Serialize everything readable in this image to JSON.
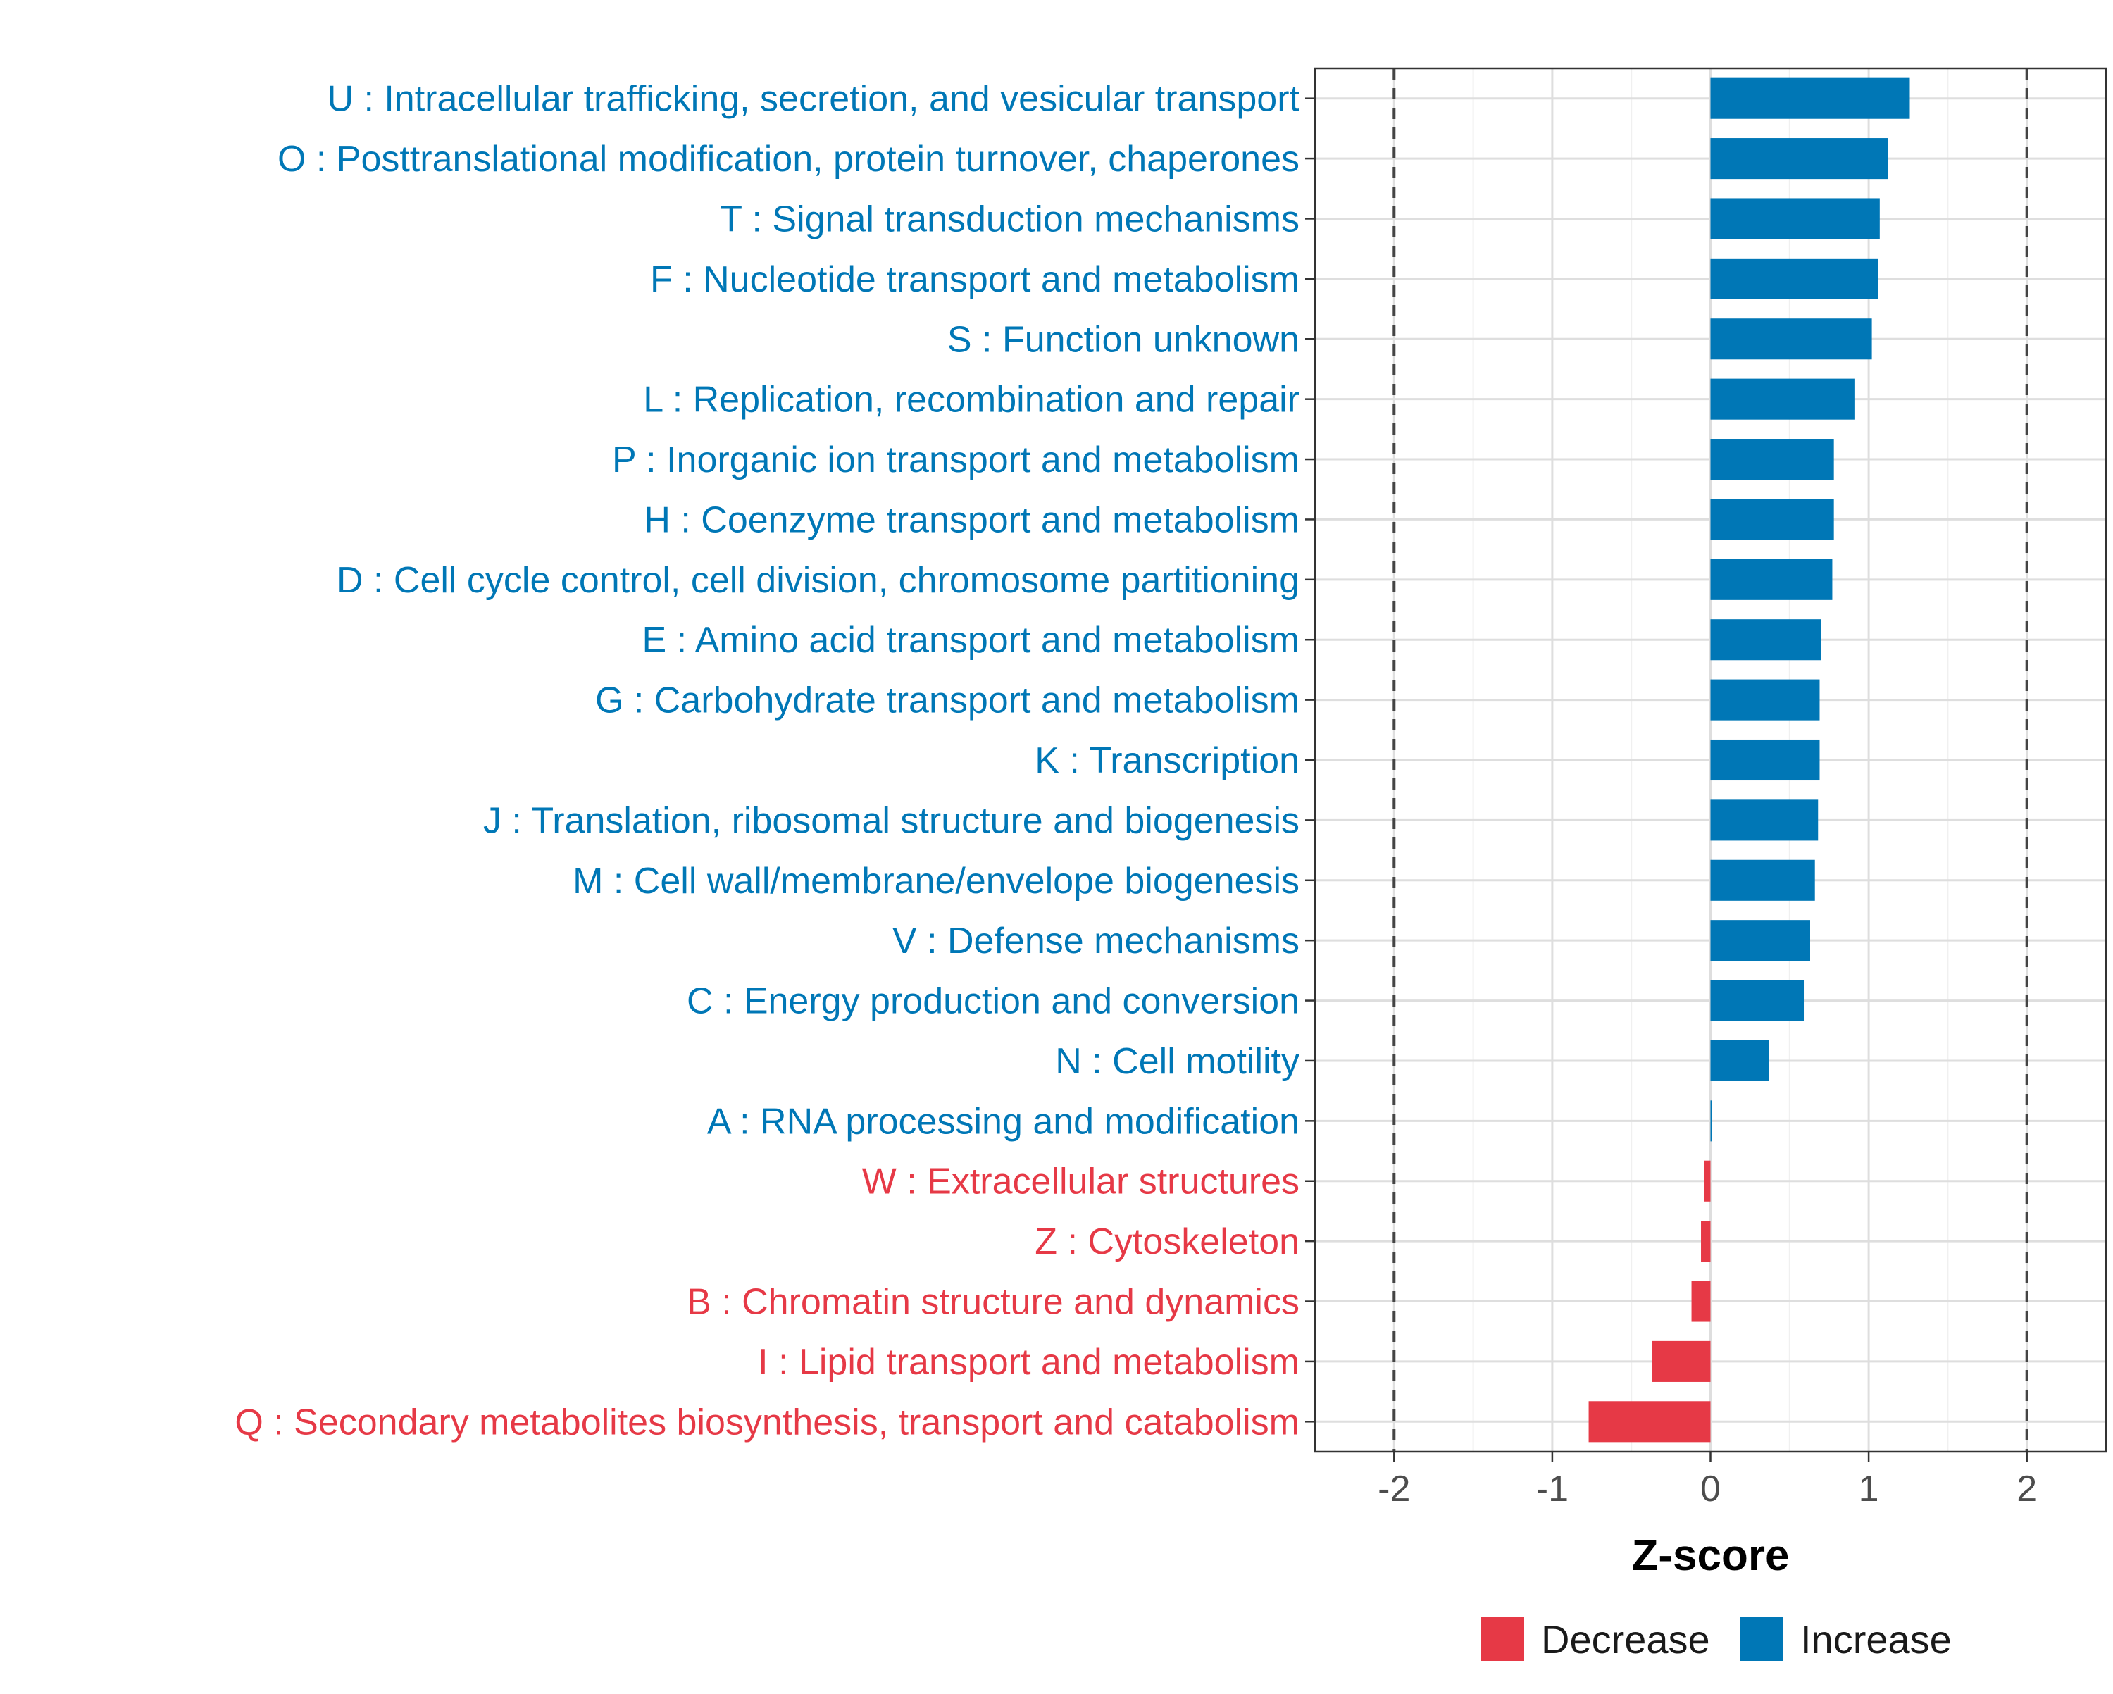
{
  "chart_data": {
    "type": "bar",
    "orientation": "horizontal",
    "title": "",
    "xlabel": "Z-score",
    "ylabel": "",
    "xlim": [
      -2.5,
      2.5
    ],
    "xticks": [
      -2,
      -1,
      0,
      1,
      2
    ],
    "xtick_labels": [
      "-2",
      "-1",
      "0",
      "1",
      "2"
    ],
    "reference_lines": [
      -2,
      2
    ],
    "grid": true,
    "legend_position": "bottom",
    "colors": {
      "Decrease": "#e63946",
      "Increase": "#0077b6"
    },
    "categories": [
      "U : Intracellular trafficking, secretion, and vesicular transport",
      "O : Posttranslational modification, protein turnover, chaperones",
      "T : Signal transduction mechanisms",
      "F : Nucleotide transport and metabolism",
      "S : Function unknown",
      "L : Replication, recombination and repair",
      "P : Inorganic ion transport and metabolism",
      "H : Coenzyme transport and metabolism",
      "D : Cell cycle control, cell division, chromosome partitioning",
      "E : Amino acid transport and metabolism",
      "G : Carbohydrate transport and metabolism",
      "K : Transcription",
      "J : Translation, ribosomal structure and biogenesis",
      "M : Cell wall/membrane/envelope biogenesis",
      "V : Defense mechanisms",
      "C : Energy production and conversion",
      "N : Cell motility",
      "A : RNA processing and modification",
      "W : Extracellular structures",
      "Z : Cytoskeleton",
      "B : Chromatin structure and dynamics",
      "I : Lipid transport and metabolism",
      "Q : Secondary metabolites biosynthesis, transport and catabolism"
    ],
    "values": [
      1.26,
      1.12,
      1.07,
      1.06,
      1.02,
      0.91,
      0.78,
      0.78,
      0.77,
      0.7,
      0.69,
      0.69,
      0.68,
      0.66,
      0.63,
      0.59,
      0.37,
      0.01,
      -0.04,
      -0.06,
      -0.12,
      -0.37,
      -0.77
    ],
    "groups": [
      "Increase",
      "Increase",
      "Increase",
      "Increase",
      "Increase",
      "Increase",
      "Increase",
      "Increase",
      "Increase",
      "Increase",
      "Increase",
      "Increase",
      "Increase",
      "Increase",
      "Increase",
      "Increase",
      "Increase",
      "Increase",
      "Decrease",
      "Decrease",
      "Decrease",
      "Decrease",
      "Decrease"
    ],
    "legend": [
      "Decrease",
      "Increase"
    ]
  }
}
